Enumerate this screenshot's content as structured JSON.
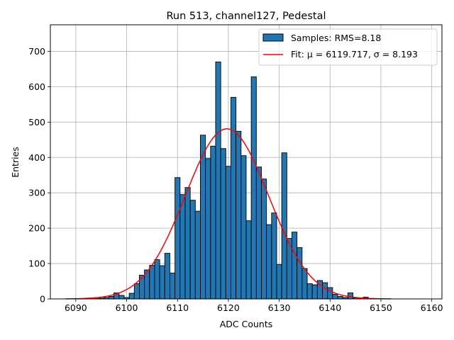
{
  "chart_data": {
    "type": "bar",
    "title": "Run 513, channel127, Pedestal",
    "xlabel": "ADC Counts",
    "ylabel": "Entries",
    "xlim": [
      6085,
      6162
    ],
    "ylim": [
      0,
      775
    ],
    "xticks": [
      6090,
      6100,
      6110,
      6120,
      6130,
      6140,
      6150,
      6160
    ],
    "yticks": [
      0,
      100,
      200,
      300,
      400,
      500,
      600,
      700
    ],
    "grid": true,
    "legend_position": "upper-right",
    "bin_width": 1,
    "bin_centers": [
      6094,
      6095,
      6096,
      6097,
      6098,
      6099,
      6100,
      6101,
      6102,
      6103,
      6104,
      6105,
      6106,
      6107,
      6108,
      6109,
      6110,
      6111,
      6112,
      6113,
      6114,
      6115,
      6116,
      6117,
      6118,
      6119,
      6120,
      6121,
      6122,
      6123,
      6124,
      6125,
      6126,
      6127,
      6128,
      6129,
      6130,
      6131,
      6132,
      6133,
      6134,
      6135,
      6136,
      6137,
      6138,
      6139,
      6140,
      6141,
      6142,
      6143,
      6144,
      6145,
      6146,
      6147
    ],
    "counts": [
      1,
      2,
      4,
      7,
      17,
      10,
      4,
      16,
      43,
      67,
      82,
      95,
      111,
      94,
      129,
      73,
      343,
      295,
      315,
      279,
      248,
      463,
      397,
      432,
      670,
      425,
      375,
      570,
      474,
      405,
      221,
      628,
      373,
      339,
      210,
      243,
      97,
      413,
      171,
      189,
      145,
      86,
      43,
      40,
      52,
      46,
      32,
      13,
      7,
      4,
      17,
      3,
      1,
      5
    ],
    "samples": {
      "label": "Samples: RMS=8.18",
      "color": "#1f77b4",
      "edge_color": "#000000"
    },
    "fit": {
      "label": "Fit: μ = 6119.717, σ = 8.193",
      "mu": 6119.717,
      "sigma": 8.193,
      "amplitude": 481,
      "x_range": [
        6088,
        6152
      ],
      "color": "#ff0000"
    }
  }
}
